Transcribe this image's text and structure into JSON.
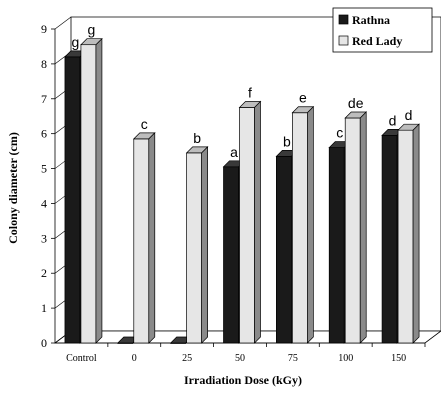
{
  "chart_data": {
    "type": "bar",
    "xlabel": "Irradiation Dose (kGy)",
    "ylabel": "Colony diameter (cm)",
    "ylim": [
      0,
      9
    ],
    "yticks": [
      "0",
      "1",
      "2",
      "3",
      "4",
      "5",
      "6",
      "7",
      "8",
      "9"
    ],
    "categories": [
      "Control",
      "0",
      "25",
      "50",
      "75",
      "100",
      "150"
    ],
    "series": [
      {
        "name": "Rathna",
        "color": "#1a1a1a",
        "values": [
          8.2,
          0,
          0,
          5.05,
          5.35,
          5.6,
          5.95
        ],
        "labels": [
          "g",
          "",
          "",
          "a",
          "b",
          "c",
          "d"
        ]
      },
      {
        "name": "Red Lady",
        "color": "#e6e6e6",
        "values": [
          8.55,
          5.85,
          5.45,
          6.75,
          6.6,
          6.45,
          6.1
        ],
        "labels": [
          "g",
          "c",
          "b",
          "f",
          "e",
          "de",
          "d"
        ]
      }
    ],
    "grid": false,
    "legend_position": "top-right",
    "style": "3d-bar"
  }
}
